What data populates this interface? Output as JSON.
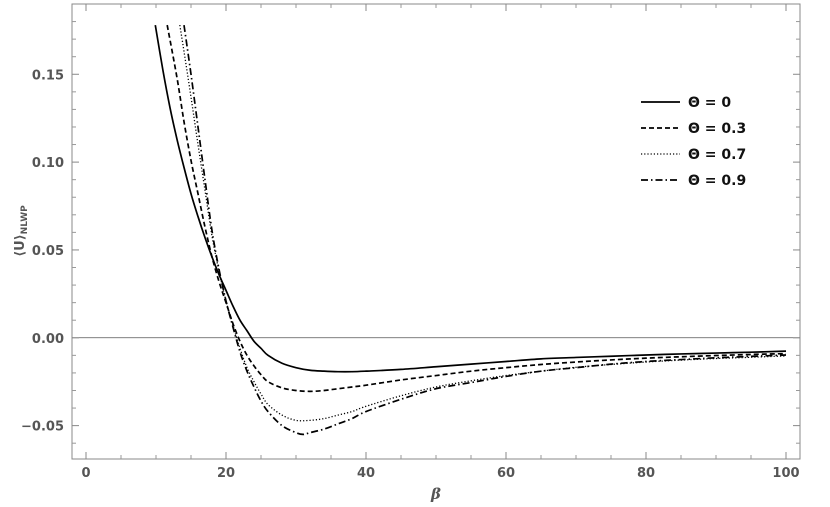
{
  "chart_data": {
    "type": "line",
    "xlabel": "β",
    "ylabel": "⟨U⟩",
    "ylabel_sub": "NLWP",
    "xlim": [
      -2,
      102
    ],
    "ylim": [
      -0.069,
      0.19
    ],
    "x_ticks": [
      0,
      20,
      40,
      60,
      80,
      100
    ],
    "y_ticks": [
      -0.05,
      0.0,
      0.05,
      0.1,
      0.15
    ],
    "y_tick_labels": [
      "−0.05",
      "0.00",
      "0.05",
      "0.10",
      "0.15"
    ],
    "legend_position": "top-right",
    "grid": false,
    "zero_line": true,
    "series": [
      {
        "name": "Θ = 0",
        "style": "solid",
        "x": [
          9.9,
          11,
          12,
          13,
          14,
          15,
          16,
          17,
          18,
          19,
          20,
          21,
          22,
          23,
          24,
          25,
          26,
          28,
          30,
          32,
          34,
          36,
          38,
          40,
          45,
          50,
          55,
          60,
          65,
          70,
          75,
          80,
          85,
          90,
          95,
          100
        ],
        "y": [
          0.178,
          0.152,
          0.131,
          0.113,
          0.097,
          0.082,
          0.069,
          0.057,
          0.046,
          0.036,
          0.027,
          0.018,
          0.01,
          0.004,
          -0.002,
          -0.006,
          -0.01,
          -0.0145,
          -0.017,
          -0.0185,
          -0.019,
          -0.0193,
          -0.0193,
          -0.019,
          -0.018,
          -0.0165,
          -0.015,
          -0.0135,
          -0.012,
          -0.0112,
          -0.0105,
          -0.0098,
          -0.0092,
          -0.0087,
          -0.0082,
          -0.0076
        ]
      },
      {
        "name": "Θ = 0.3",
        "style": "dashed",
        "x": [
          11.6,
          13,
          14,
          15,
          16,
          17,
          18,
          19,
          20,
          21,
          22,
          23,
          24,
          25,
          26,
          28,
          30,
          32,
          34,
          36,
          38,
          40,
          45,
          50,
          55,
          60,
          65,
          70,
          75,
          80,
          85,
          90,
          95,
          100
        ],
        "y": [
          0.178,
          0.148,
          0.123,
          0.101,
          0.082,
          0.063,
          0.046,
          0.032,
          0.02,
          0.008,
          -0.002,
          -0.01,
          -0.016,
          -0.021,
          -0.025,
          -0.0285,
          -0.03,
          -0.0305,
          -0.03,
          -0.029,
          -0.028,
          -0.027,
          -0.024,
          -0.0215,
          -0.019,
          -0.017,
          -0.0152,
          -0.0138,
          -0.0126,
          -0.0116,
          -0.0108,
          -0.0101,
          -0.0095,
          -0.009
        ]
      },
      {
        "name": "Θ = 0.7",
        "style": "dotted",
        "x": [
          13.4,
          14,
          15,
          16,
          17,
          18,
          19,
          20,
          21,
          22,
          23,
          24,
          25,
          26,
          28,
          30,
          32,
          34,
          36,
          38,
          40,
          45,
          50,
          55,
          60,
          65,
          70,
          75,
          80,
          85,
          90,
          95,
          100
        ],
        "y": [
          0.178,
          0.163,
          0.137,
          0.11,
          0.084,
          0.058,
          0.038,
          0.021,
          0.007,
          -0.006,
          -0.017,
          -0.025,
          -0.032,
          -0.038,
          -0.044,
          -0.047,
          -0.047,
          -0.046,
          -0.044,
          -0.042,
          -0.039,
          -0.033,
          -0.028,
          -0.0245,
          -0.0215,
          -0.019,
          -0.0168,
          -0.0152,
          -0.0138,
          -0.0127,
          -0.0118,
          -0.0111,
          -0.0103
        ]
      },
      {
        "name": "Θ = 0.9",
        "style": "dashdot",
        "x": [
          14,
          15,
          16,
          17,
          18,
          19,
          20,
          21,
          22,
          23,
          24,
          25,
          26,
          28,
          30,
          31,
          32,
          34,
          36,
          38,
          40,
          45,
          50,
          55,
          60,
          65,
          70,
          75,
          80,
          85,
          90,
          95,
          100
        ],
        "y": [
          0.178,
          0.15,
          0.12,
          0.09,
          0.061,
          0.039,
          0.021,
          0.006,
          -0.008,
          -0.019,
          -0.028,
          -0.036,
          -0.042,
          -0.05,
          -0.054,
          -0.055,
          -0.054,
          -0.052,
          -0.049,
          -0.046,
          -0.042,
          -0.035,
          -0.029,
          -0.0255,
          -0.022,
          -0.019,
          -0.017,
          -0.015,
          -0.0135,
          -0.0124,
          -0.0114,
          -0.0106,
          -0.0098
        ]
      }
    ]
  }
}
